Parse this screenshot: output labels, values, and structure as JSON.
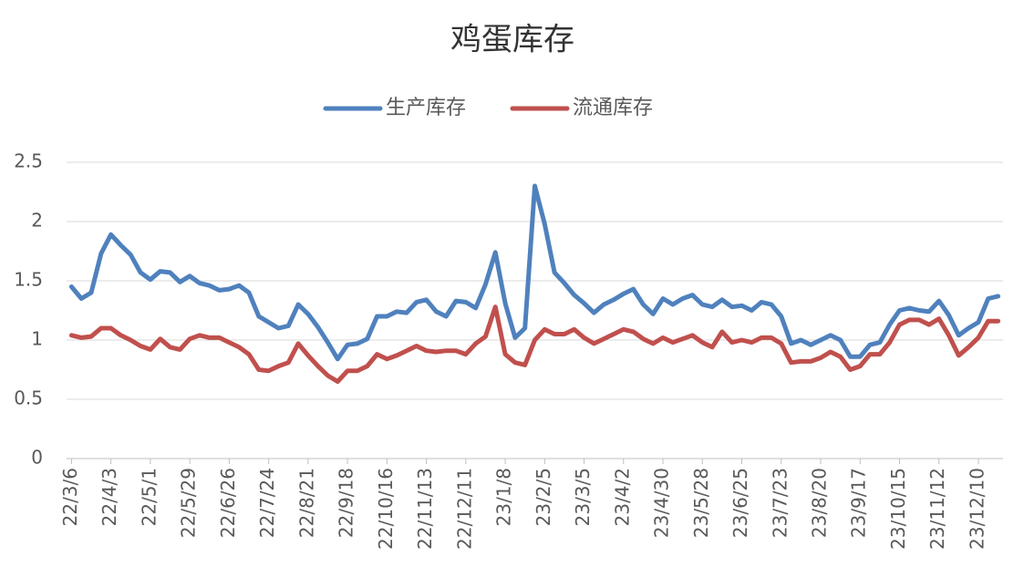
{
  "chart_data": {
    "type": "line",
    "title": "鸡蛋库存",
    "categories": [
      "22/3/6",
      null,
      null,
      null,
      "22/4/3",
      null,
      null,
      null,
      "22/5/1",
      null,
      null,
      null,
      "22/5/29",
      null,
      null,
      null,
      "22/6/26",
      null,
      null,
      null,
      "22/7/24",
      null,
      null,
      null,
      "22/8/21",
      null,
      null,
      null,
      "22/9/18",
      null,
      null,
      null,
      "22/10/16",
      null,
      null,
      null,
      "22/11/13",
      null,
      null,
      null,
      "22/12/11",
      null,
      null,
      null,
      "23/1/8",
      null,
      null,
      null,
      "23/2/5",
      null,
      null,
      null,
      "23/3/5",
      null,
      null,
      null,
      "23/4/2",
      null,
      null,
      null,
      "23/4/30",
      null,
      null,
      null,
      "23/5/28",
      null,
      null,
      null,
      "23/6/25",
      null,
      null,
      null,
      "23/7/23",
      null,
      null,
      null,
      "23/8/20",
      null,
      null,
      null,
      "23/9/17",
      null,
      null,
      null,
      "23/10/15",
      null,
      null,
      null,
      "23/11/12",
      null,
      null,
      null,
      "23/12/10",
      null,
      null
    ],
    "series": [
      {
        "name": "生产库存",
        "color": "#4f81bd",
        "values": [
          1.45,
          1.35,
          1.4,
          1.73,
          1.89,
          1.8,
          1.72,
          1.57,
          1.51,
          1.58,
          1.57,
          1.49,
          1.54,
          1.48,
          1.46,
          1.42,
          1.43,
          1.46,
          1.4,
          1.2,
          1.15,
          1.1,
          1.12,
          1.3,
          1.22,
          1.11,
          0.98,
          0.84,
          0.96,
          0.97,
          1.01,
          1.2,
          1.2,
          1.24,
          1.23,
          1.32,
          1.34,
          1.24,
          1.2,
          1.33,
          1.32,
          1.27,
          1.47,
          1.74,
          1.31,
          1.02,
          1.1,
          2.3,
          1.98,
          1.57,
          1.48,
          1.38,
          1.31,
          1.23,
          1.3,
          1.34,
          1.39,
          1.43,
          1.3,
          1.22,
          1.35,
          1.3,
          1.35,
          1.38,
          1.3,
          1.28,
          1.34,
          1.28,
          1.29,
          1.25,
          1.32,
          1.3,
          1.2,
          0.97,
          1.0,
          0.96,
          1.0,
          1.04,
          1.0,
          0.86,
          0.86,
          0.96,
          0.98,
          1.13,
          1.25,
          1.27,
          1.25,
          1.24,
          1.33,
          1.21,
          1.04,
          1.1,
          1.15,
          1.35,
          1.37
        ]
      },
      {
        "name": "流通库存",
        "color": "#c0504d",
        "values": [
          1.04,
          1.02,
          1.03,
          1.1,
          1.1,
          1.04,
          1.0,
          0.95,
          0.92,
          1.01,
          0.94,
          0.92,
          1.01,
          1.04,
          1.02,
          1.02,
          0.98,
          0.94,
          0.88,
          0.75,
          0.74,
          0.78,
          0.81,
          0.97,
          0.87,
          0.78,
          0.7,
          0.65,
          0.74,
          0.74,
          0.78,
          0.88,
          0.84,
          0.87,
          0.91,
          0.95,
          0.91,
          0.9,
          0.91,
          0.91,
          0.88,
          0.97,
          1.03,
          1.28,
          0.88,
          0.81,
          0.79,
          1.0,
          1.09,
          1.05,
          1.05,
          1.09,
          1.02,
          0.97,
          1.01,
          1.05,
          1.09,
          1.07,
          1.01,
          0.97,
          1.02,
          0.98,
          1.01,
          1.04,
          0.98,
          0.94,
          1.07,
          0.98,
          1.0,
          0.98,
          1.02,
          1.02,
          0.97,
          0.81,
          0.82,
          0.82,
          0.85,
          0.9,
          0.86,
          0.75,
          0.78,
          0.88,
          0.88,
          0.98,
          1.13,
          1.17,
          1.17,
          1.13,
          1.18,
          1.04,
          0.87,
          0.94,
          1.02,
          1.16,
          1.16
        ]
      }
    ],
    "ylim": [
      0,
      2.5
    ],
    "yticks": [
      0,
      0.5,
      1,
      1.5,
      2,
      2.5
    ],
    "grid": true,
    "legend": "top"
  }
}
